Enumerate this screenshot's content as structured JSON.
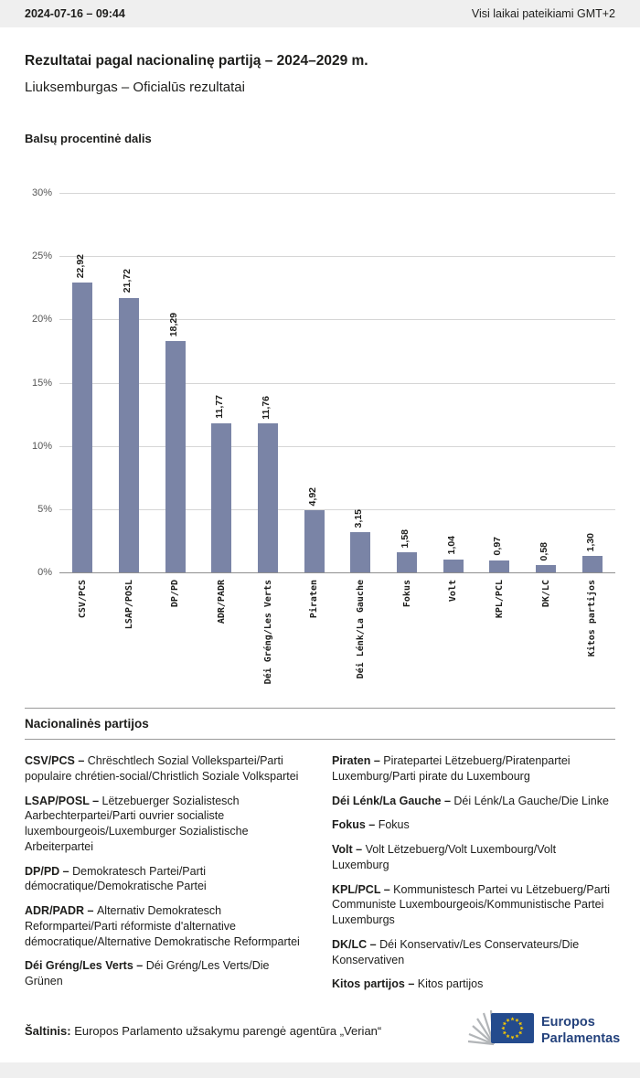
{
  "header": {
    "datetime": "2024-07-16 – 09:44",
    "timezone_note": "Visi laikai pateikiami GMT+2"
  },
  "title": "Rezultatai pagal nacionalinę partiją – 2024–2029 m.",
  "subtitle": "Liuksemburgas – Oficialūs rezultatai",
  "chart_data": {
    "type": "bar",
    "title": "Balsų procentinė dalis",
    "categories": [
      "CSV/PCS",
      "LSAP/POSL",
      "DP/PD",
      "ADR/PADR",
      "Déi Gréng/Les Verts",
      "Piraten",
      "Déi Lénk/La Gauche",
      "Fokus",
      "Volt",
      "KPL/PCL",
      "DK/LC",
      "Kitos partijos"
    ],
    "values": [
      22.92,
      21.72,
      18.29,
      11.77,
      11.76,
      4.92,
      3.15,
      1.58,
      1.04,
      0.97,
      0.58,
      1.3
    ],
    "value_labels": [
      "22,92",
      "21,72",
      "18,29",
      "11,77",
      "11,76",
      "4,92",
      "3,15",
      "1,58",
      "1,04",
      "0,97",
      "0,58",
      "1,30"
    ],
    "xlabel": "",
    "ylabel": "Balsų procentinė dalis",
    "ylim": [
      0,
      30
    ],
    "yticks": [
      "30%",
      "25%",
      "20%",
      "15%",
      "10%",
      "5%",
      "0%"
    ],
    "grid": true,
    "legend": "none",
    "bar_color": "#7a84a6"
  },
  "parties_section": {
    "heading": "Nacionalinės partijos",
    "columns": [
      [
        {
          "abbr": "CSV/PCS –",
          "desc": "Chrëschtlech Sozial Vollekspartei/Parti populaire chrétien-social/Christlich Soziale Volkspartei"
        },
        {
          "abbr": "LSAP/POSL –",
          "desc": "Lëtzebuerger Sozialistesch Aarbechterpartei/Parti ouvrier socialiste luxembourgeois/Luxemburger Sozialistische Arbeiterpartei"
        },
        {
          "abbr": "DP/PD –",
          "desc": "Demokratesch Partei/Parti démocratique/Demokratische Partei"
        },
        {
          "abbr": "ADR/PADR –",
          "desc": "Alternativ Demokratesch Reformpartei/Parti réformiste d'alternative démocratique/Alternative Demokratische Reformpartei"
        },
        {
          "abbr": "Déi Gréng/Les Verts –",
          "desc": "Déi Gréng/Les Verts/Die Grünen"
        }
      ],
      [
        {
          "abbr": "Piraten –",
          "desc": "Piratepartei Lëtzebuerg/Piratenpartei Luxemburg/Parti pirate du Luxembourg"
        },
        {
          "abbr": "Déi Lénk/La Gauche –",
          "desc": "Déi Lénk/La Gauche/Die Linke"
        },
        {
          "abbr": "Fokus –",
          "desc": "Fokus"
        },
        {
          "abbr": "Volt –",
          "desc": "Volt Lëtzebuerg/Volt Luxembourg/Volt Luxemburg"
        },
        {
          "abbr": "KPL/PCL –",
          "desc": "Kommunistesch Partei vu Lëtzebuerg/Parti Communiste Luxembourgeois/Kommunistische Partei Luxemburgs"
        },
        {
          "abbr": "DK/LC –",
          "desc": "Déi Konservativ/Les Conservateurs/Die Konservativen"
        },
        {
          "abbr": "Kitos partijos –",
          "desc": "Kitos partijos"
        }
      ]
    ]
  },
  "footer": {
    "source_label": "Šaltinis:",
    "source_text": "Europos Parlamento užsakymu parengė agentūra „Verian“",
    "logo": {
      "line1": "Europos",
      "line2": "Parlamentas",
      "text_color": "#24427c",
      "flag_color": "#244b8d",
      "star_color": "#f7c800"
    }
  }
}
